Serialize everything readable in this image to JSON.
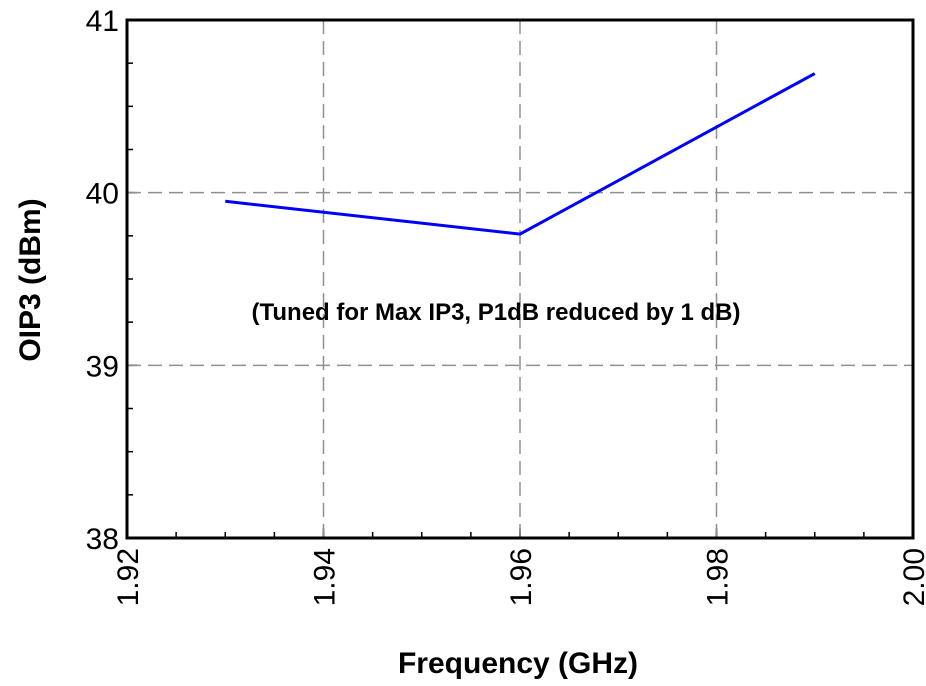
{
  "chart_data": {
    "type": "line",
    "title": "",
    "xlabel": "Frequency (GHz)",
    "ylabel": "OIP3 (dBm)",
    "xlim": [
      1.92,
      2.0
    ],
    "ylim": [
      38,
      41
    ],
    "x_ticks": [
      "1.92",
      "1.94",
      "1.96",
      "1.98",
      "2.00"
    ],
    "y_ticks": [
      "38",
      "39",
      "40",
      "41"
    ],
    "x_tick_values": [
      1.92,
      1.94,
      1.96,
      1.98,
      2.0
    ],
    "y_tick_values": [
      38,
      39,
      40,
      41
    ],
    "grid": true,
    "series": [
      {
        "x": [
          1.93,
          1.96,
          1.99
        ],
        "y": [
          39.95,
          39.76,
          40.69
        ],
        "color": "#0000ff"
      }
    ],
    "annotation": "(Tuned for Max IP3, P1dB reduced by 1 dB)"
  }
}
